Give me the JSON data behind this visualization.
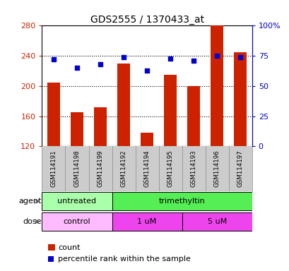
{
  "title": "GDS2555 / 1370433_at",
  "samples": [
    "GSM114191",
    "GSM114198",
    "GSM114199",
    "GSM114192",
    "GSM114194",
    "GSM114195",
    "GSM114193",
    "GSM114196",
    "GSM114197"
  ],
  "counts": [
    205,
    165,
    172,
    230,
    138,
    215,
    200,
    280,
    245
  ],
  "percentiles": [
    72,
    65,
    68,
    74,
    63,
    73,
    71,
    75,
    74
  ],
  "ymin": 120,
  "ymax": 280,
  "yticks": [
    120,
    160,
    200,
    240,
    280
  ],
  "y2ticks": [
    0,
    25,
    50,
    75,
    100
  ],
  "y2labels": [
    "0",
    "25",
    "50",
    "75",
    "100%"
  ],
  "bar_color": "#cc2200",
  "dot_color": "#0000cc",
  "agent_groups": [
    {
      "label": "untreated",
      "start": 0,
      "end": 3,
      "color": "#aaffaa"
    },
    {
      "label": "trimethyltin",
      "start": 3,
      "end": 9,
      "color": "#55ee55"
    }
  ],
  "dose_groups": [
    {
      "label": "control",
      "start": 0,
      "end": 3,
      "color": "#ffbbff"
    },
    {
      "label": "1 uM",
      "start": 3,
      "end": 6,
      "color": "#ee44ee"
    },
    {
      "label": "5 uM",
      "start": 6,
      "end": 9,
      "color": "#ee44ee"
    }
  ],
  "legend_items": [
    {
      "label": "count",
      "color": "#cc2200",
      "marker": "s"
    },
    {
      "label": "percentile rank within the sample",
      "color": "#0000cc",
      "marker": "s"
    }
  ],
  "background_color": "#ffffff",
  "label_area_bg": "#cccccc",
  "tick_label_color_left": "#cc2200",
  "tick_label_color_right": "#0000cc"
}
